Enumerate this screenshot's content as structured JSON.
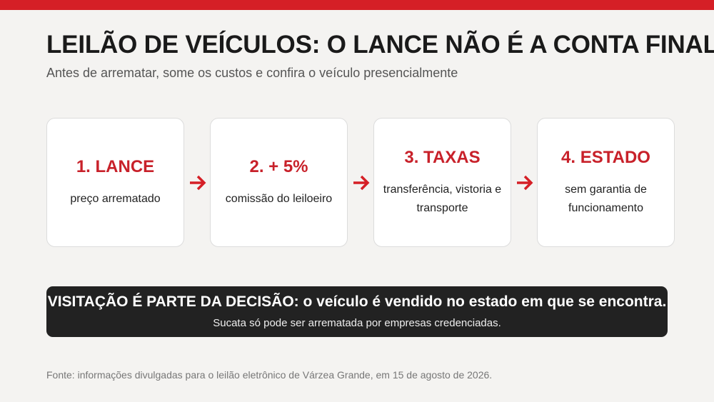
{
  "header": {
    "title": "LEILÃO DE VEÍCULOS: O LANCE NÃO É A CONTA FINAL",
    "subtitle": "Antes de arrematar, some os custos e confira o veículo presencialmente"
  },
  "steps": [
    {
      "title": "1. LANCE",
      "text": "preço arrematado"
    },
    {
      "title": "2. + 5%",
      "text": "comissão do leiloeiro"
    },
    {
      "title": "3. TAXAS",
      "text": "transferência, vistoria e transporte"
    },
    {
      "title": "4. ESTADO",
      "text": "sem garantia de funcionamento"
    }
  ],
  "banner": {
    "headline": "VISITAÇÃO É PARTE DA DECISÃO: o veículo é vendido no estado em que se encontra.",
    "note": "Sucata só pode ser arrematada por empresas credenciadas."
  },
  "footer": {
    "source": "Fonte: informações divulgadas para o leilão eletrônico de Várzea Grande, em 15 de agosto de 2026."
  }
}
